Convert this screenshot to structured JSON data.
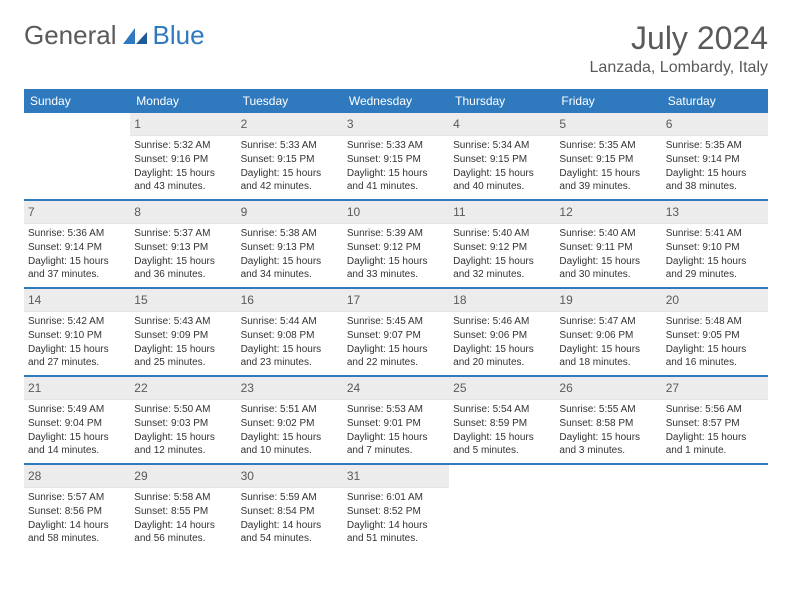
{
  "logo": {
    "word1": "General",
    "word2": "Blue"
  },
  "title": "July 2024",
  "location": "Lanzada, Lombardy, Italy",
  "colors": {
    "accent": "#2f7abf",
    "header_text": "#ffffff",
    "daynum_bg": "#ececec",
    "text_muted": "#5a5a5a",
    "body_text": "#333333"
  },
  "day_names": [
    "Sunday",
    "Monday",
    "Tuesday",
    "Wednesday",
    "Thursday",
    "Friday",
    "Saturday"
  ],
  "weeks": [
    [
      null,
      {
        "n": "1",
        "sr": "Sunrise: 5:32 AM",
        "ss": "Sunset: 9:16 PM",
        "dl": "Daylight: 15 hours and 43 minutes."
      },
      {
        "n": "2",
        "sr": "Sunrise: 5:33 AM",
        "ss": "Sunset: 9:15 PM",
        "dl": "Daylight: 15 hours and 42 minutes."
      },
      {
        "n": "3",
        "sr": "Sunrise: 5:33 AM",
        "ss": "Sunset: 9:15 PM",
        "dl": "Daylight: 15 hours and 41 minutes."
      },
      {
        "n": "4",
        "sr": "Sunrise: 5:34 AM",
        "ss": "Sunset: 9:15 PM",
        "dl": "Daylight: 15 hours and 40 minutes."
      },
      {
        "n": "5",
        "sr": "Sunrise: 5:35 AM",
        "ss": "Sunset: 9:15 PM",
        "dl": "Daylight: 15 hours and 39 minutes."
      },
      {
        "n": "6",
        "sr": "Sunrise: 5:35 AM",
        "ss": "Sunset: 9:14 PM",
        "dl": "Daylight: 15 hours and 38 minutes."
      }
    ],
    [
      {
        "n": "7",
        "sr": "Sunrise: 5:36 AM",
        "ss": "Sunset: 9:14 PM",
        "dl": "Daylight: 15 hours and 37 minutes."
      },
      {
        "n": "8",
        "sr": "Sunrise: 5:37 AM",
        "ss": "Sunset: 9:13 PM",
        "dl": "Daylight: 15 hours and 36 minutes."
      },
      {
        "n": "9",
        "sr": "Sunrise: 5:38 AM",
        "ss": "Sunset: 9:13 PM",
        "dl": "Daylight: 15 hours and 34 minutes."
      },
      {
        "n": "10",
        "sr": "Sunrise: 5:39 AM",
        "ss": "Sunset: 9:12 PM",
        "dl": "Daylight: 15 hours and 33 minutes."
      },
      {
        "n": "11",
        "sr": "Sunrise: 5:40 AM",
        "ss": "Sunset: 9:12 PM",
        "dl": "Daylight: 15 hours and 32 minutes."
      },
      {
        "n": "12",
        "sr": "Sunrise: 5:40 AM",
        "ss": "Sunset: 9:11 PM",
        "dl": "Daylight: 15 hours and 30 minutes."
      },
      {
        "n": "13",
        "sr": "Sunrise: 5:41 AM",
        "ss": "Sunset: 9:10 PM",
        "dl": "Daylight: 15 hours and 29 minutes."
      }
    ],
    [
      {
        "n": "14",
        "sr": "Sunrise: 5:42 AM",
        "ss": "Sunset: 9:10 PM",
        "dl": "Daylight: 15 hours and 27 minutes."
      },
      {
        "n": "15",
        "sr": "Sunrise: 5:43 AM",
        "ss": "Sunset: 9:09 PM",
        "dl": "Daylight: 15 hours and 25 minutes."
      },
      {
        "n": "16",
        "sr": "Sunrise: 5:44 AM",
        "ss": "Sunset: 9:08 PM",
        "dl": "Daylight: 15 hours and 23 minutes."
      },
      {
        "n": "17",
        "sr": "Sunrise: 5:45 AM",
        "ss": "Sunset: 9:07 PM",
        "dl": "Daylight: 15 hours and 22 minutes."
      },
      {
        "n": "18",
        "sr": "Sunrise: 5:46 AM",
        "ss": "Sunset: 9:06 PM",
        "dl": "Daylight: 15 hours and 20 minutes."
      },
      {
        "n": "19",
        "sr": "Sunrise: 5:47 AM",
        "ss": "Sunset: 9:06 PM",
        "dl": "Daylight: 15 hours and 18 minutes."
      },
      {
        "n": "20",
        "sr": "Sunrise: 5:48 AM",
        "ss": "Sunset: 9:05 PM",
        "dl": "Daylight: 15 hours and 16 minutes."
      }
    ],
    [
      {
        "n": "21",
        "sr": "Sunrise: 5:49 AM",
        "ss": "Sunset: 9:04 PM",
        "dl": "Daylight: 15 hours and 14 minutes."
      },
      {
        "n": "22",
        "sr": "Sunrise: 5:50 AM",
        "ss": "Sunset: 9:03 PM",
        "dl": "Daylight: 15 hours and 12 minutes."
      },
      {
        "n": "23",
        "sr": "Sunrise: 5:51 AM",
        "ss": "Sunset: 9:02 PM",
        "dl": "Daylight: 15 hours and 10 minutes."
      },
      {
        "n": "24",
        "sr": "Sunrise: 5:53 AM",
        "ss": "Sunset: 9:01 PM",
        "dl": "Daylight: 15 hours and 7 minutes."
      },
      {
        "n": "25",
        "sr": "Sunrise: 5:54 AM",
        "ss": "Sunset: 8:59 PM",
        "dl": "Daylight: 15 hours and 5 minutes."
      },
      {
        "n": "26",
        "sr": "Sunrise: 5:55 AM",
        "ss": "Sunset: 8:58 PM",
        "dl": "Daylight: 15 hours and 3 minutes."
      },
      {
        "n": "27",
        "sr": "Sunrise: 5:56 AM",
        "ss": "Sunset: 8:57 PM",
        "dl": "Daylight: 15 hours and 1 minute."
      }
    ],
    [
      {
        "n": "28",
        "sr": "Sunrise: 5:57 AM",
        "ss": "Sunset: 8:56 PM",
        "dl": "Daylight: 14 hours and 58 minutes."
      },
      {
        "n": "29",
        "sr": "Sunrise: 5:58 AM",
        "ss": "Sunset: 8:55 PM",
        "dl": "Daylight: 14 hours and 56 minutes."
      },
      {
        "n": "30",
        "sr": "Sunrise: 5:59 AM",
        "ss": "Sunset: 8:54 PM",
        "dl": "Daylight: 14 hours and 54 minutes."
      },
      {
        "n": "31",
        "sr": "Sunrise: 6:01 AM",
        "ss": "Sunset: 8:52 PM",
        "dl": "Daylight: 14 hours and 51 minutes."
      },
      null,
      null,
      null
    ]
  ]
}
